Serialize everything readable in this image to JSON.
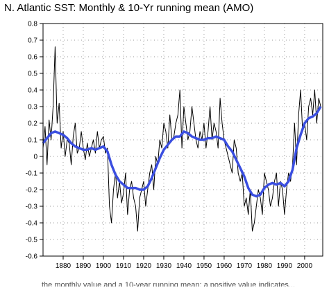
{
  "chart_data": {
    "type": "line",
    "title": "N. Atlantic SST: Monthly & 10-Yr running mean (AMO)",
    "xlabel": "",
    "ylabel": "",
    "xlim": [
      1870,
      2009
    ],
    "ylim": [
      -0.6,
      0.8
    ],
    "grid": true,
    "x_ticks": [
      1880,
      1890,
      1900,
      1910,
      1920,
      1930,
      1940,
      1950,
      1960,
      1970,
      1980,
      1990,
      2000
    ],
    "y_ticks": [
      -0.6,
      -0.5,
      -0.4,
      -0.3,
      -0.2,
      -0.1,
      0,
      0.1,
      0.2,
      0.3,
      0.4,
      0.5,
      0.6,
      0.7,
      0.8
    ],
    "x_tick_labels": [
      "1880",
      "1890",
      "1900",
      "1910",
      "1920",
      "1930",
      "1940",
      "1950",
      "1960",
      "1970",
      "1980",
      "1990",
      "2000"
    ],
    "y_tick_labels": [
      "-0.6",
      "-0.5",
      "-0.4",
      "-0.3",
      "-0.2",
      "-0.1",
      "0",
      "0.1",
      "0.2",
      "0.3",
      "0.4",
      "0.5",
      "0.6",
      "0.7",
      "0.8"
    ],
    "series": [
      {
        "name": "",
        "color": "#000000",
        "style": "monthly",
        "x": [
          1870,
          1871,
          1872,
          1873,
          1874,
          1875,
          1876,
          1877,
          1878,
          1879,
          1880,
          1881,
          1882,
          1883,
          1884,
          1885,
          1886,
          1887,
          1888,
          1889,
          1890,
          1891,
          1892,
          1893,
          1894,
          1895,
          1896,
          1897,
          1898,
          1899,
          1900,
          1901,
          1902,
          1903,
          1904,
          1905,
          1906,
          1907,
          1908,
          1909,
          1910,
          1911,
          1912,
          1913,
          1914,
          1915,
          1916,
          1917,
          1918,
          1919,
          1920,
          1921,
          1922,
          1923,
          1924,
          1925,
          1926,
          1927,
          1928,
          1929,
          1930,
          1931,
          1932,
          1933,
          1934,
          1935,
          1936,
          1937,
          1938,
          1939,
          1940,
          1941,
          1942,
          1943,
          1944,
          1945,
          1946,
          1947,
          1948,
          1949,
          1950,
          1951,
          1952,
          1953,
          1954,
          1955,
          1956,
          1957,
          1958,
          1959,
          1960,
          1961,
          1962,
          1963,
          1964,
          1965,
          1966,
          1967,
          1968,
          1969,
          1970,
          1971,
          1972,
          1973,
          1974,
          1975,
          1976,
          1977,
          1978,
          1979,
          1980,
          1981,
          1982,
          1983,
          1984,
          1985,
          1986,
          1987,
          1988,
          1989,
          1990,
          1991,
          1992,
          1993,
          1994,
          1995,
          1996,
          1997,
          1998,
          1999,
          2000,
          2001,
          2002,
          2003,
          2004,
          2005,
          2006,
          2007,
          2008
        ],
        "y": [
          0.05,
          0.18,
          -0.05,
          0.22,
          0.1,
          0.3,
          0.66,
          0.2,
          0.32,
          0.05,
          0.15,
          0.0,
          0.1,
          0.08,
          -0.05,
          0.12,
          0.2,
          0.02,
          0.05,
          0.15,
          0.05,
          -0.02,
          0.08,
          0.0,
          0.05,
          0.1,
          0.02,
          0.15,
          0.05,
          0.1,
          0.12,
          0.02,
          0.05,
          -0.3,
          -0.4,
          -0.2,
          -0.1,
          -0.25,
          -0.15,
          -0.28,
          -0.22,
          -0.1,
          -0.35,
          -0.2,
          -0.15,
          -0.25,
          -0.3,
          -0.45,
          -0.25,
          -0.2,
          -0.15,
          -0.3,
          -0.2,
          -0.1,
          -0.05,
          -0.2,
          0.0,
          -0.05,
          0.1,
          0.05,
          0.2,
          0.15,
          0.05,
          0.25,
          0.1,
          0.12,
          0.2,
          0.25,
          0.4,
          0.05,
          0.3,
          0.2,
          0.1,
          0.15,
          0.3,
          0.2,
          0.1,
          0.05,
          0.15,
          0.1,
          0.2,
          0.05,
          0.15,
          0.3,
          0.1,
          0.2,
          0.15,
          0.05,
          0.35,
          0.2,
          0.1,
          0.05,
          0.0,
          -0.05,
          -0.1,
          0.1,
          0.05,
          -0.1,
          -0.15,
          -0.1,
          -0.3,
          -0.25,
          -0.35,
          -0.2,
          -0.45,
          -0.4,
          -0.3,
          -0.2,
          -0.25,
          -0.35,
          -0.1,
          -0.15,
          -0.2,
          -0.3,
          -0.25,
          -0.15,
          -0.1,
          -0.3,
          -0.15,
          -0.2,
          -0.35,
          -0.2,
          -0.1,
          -0.15,
          -0.05,
          0.2,
          -0.05,
          0.25,
          0.4,
          0.15,
          0.2,
          0.1,
          0.3,
          0.35,
          0.25,
          0.4,
          0.2,
          0.35,
          0.3
        ]
      },
      {
        "name": "",
        "color": "#3a4ee0",
        "style": "running-mean",
        "x": [
          1870,
          1872,
          1874,
          1876,
          1878,
          1880,
          1882,
          1884,
          1886,
          1888,
          1890,
          1892,
          1894,
          1896,
          1898,
          1900,
          1902,
          1904,
          1906,
          1908,
          1910,
          1912,
          1914,
          1916,
          1918,
          1920,
          1922,
          1924,
          1926,
          1928,
          1930,
          1932,
          1934,
          1936,
          1938,
          1940,
          1942,
          1944,
          1946,
          1948,
          1950,
          1952,
          1954,
          1956,
          1958,
          1960,
          1962,
          1964,
          1966,
          1968,
          1970,
          1972,
          1974,
          1976,
          1978,
          1980,
          1982,
          1984,
          1986,
          1988,
          1990,
          1992,
          1994,
          1996,
          1998,
          2000,
          2002,
          2004,
          2006,
          2008
        ],
        "y": [
          0.08,
          0.11,
          0.14,
          0.15,
          0.14,
          0.13,
          0.11,
          0.08,
          0.06,
          0.05,
          0.04,
          0.04,
          0.05,
          0.04,
          0.05,
          0.06,
          0.03,
          -0.05,
          -0.11,
          -0.15,
          -0.17,
          -0.19,
          -0.19,
          -0.19,
          -0.2,
          -0.2,
          -0.18,
          -0.13,
          -0.07,
          -0.01,
          0.04,
          0.07,
          0.1,
          0.12,
          0.12,
          0.15,
          0.14,
          0.12,
          0.11,
          0.1,
          0.1,
          0.11,
          0.11,
          0.12,
          0.11,
          0.1,
          0.06,
          0.03,
          -0.02,
          -0.07,
          -0.12,
          -0.19,
          -0.23,
          -0.24,
          -0.23,
          -0.19,
          -0.17,
          -0.16,
          -0.17,
          -0.16,
          -0.18,
          -0.15,
          -0.08,
          0.05,
          0.13,
          0.2,
          0.23,
          0.24,
          0.26,
          0.3
        ]
      }
    ]
  },
  "footer": {
    "caption": "the monthly value and a 10-year running mean; a positive value indicates..."
  }
}
